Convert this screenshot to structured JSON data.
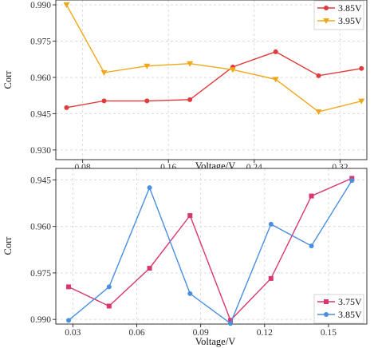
{
  "chart_data": [
    {
      "type": "line",
      "xlabel": "Voltage/V",
      "ylabel": "Corr",
      "xlim": [
        0.055,
        0.345
      ],
      "ylim": [
        0.926,
        0.992
      ],
      "y_inverted": false,
      "xticks": [
        "0.08",
        "0.16",
        "0.24",
        "0.32"
      ],
      "yticks": [
        "0.930",
        "0.945",
        "0.960",
        "0.975",
        "0.990"
      ],
      "grid": true,
      "legend": "top-right",
      "series": [
        {
          "name": "3.85V",
          "color": "#e03a3a",
          "marker": "circle",
          "x": [
            0.065,
            0.1,
            0.14,
            0.18,
            0.22,
            0.26,
            0.3,
            0.34
          ],
          "y": [
            0.9475,
            0.9503,
            0.9503,
            0.9508,
            0.9643,
            0.9706,
            0.9607,
            0.9637
          ]
        },
        {
          "name": "3.95V",
          "color": "#f0a81a",
          "marker": "triangle-down",
          "x": [
            0.065,
            0.1,
            0.14,
            0.18,
            0.22,
            0.26,
            0.3,
            0.34
          ],
          "y": [
            0.99,
            0.962,
            0.9647,
            0.9657,
            0.9632,
            0.9592,
            0.9458,
            0.9502
          ]
        }
      ]
    },
    {
      "type": "line",
      "xlabel": "Voltage/V",
      "ylabel": "Corr",
      "xlim": [
        0.022,
        0.168
      ],
      "ylim": [
        0.9915,
        0.9413
      ],
      "y_inverted": true,
      "xticks": [
        "0.03",
        "0.06",
        "0.09",
        "0.12",
        "0.15"
      ],
      "yticks": [
        "0.945",
        "0.960",
        "0.975",
        "0.990"
      ],
      "grid": true,
      "legend": "bottom-right",
      "series": [
        {
          "name": "3.75V",
          "color": "#d93670",
          "marker": "square",
          "x": [
            0.028,
            0.047,
            0.066,
            0.085,
            0.104,
            0.123,
            0.142,
            0.161
          ],
          "y": [
            0.9795,
            0.9857,
            0.9735,
            0.9565,
            0.9903,
            0.9768,
            0.9502,
            0.9445
          ]
        },
        {
          "name": "3.85V",
          "color": "#4a8ee0",
          "marker": "circle",
          "x": [
            0.028,
            0.047,
            0.066,
            0.085,
            0.104,
            0.123,
            0.142,
            0.161
          ],
          "y": [
            0.9903,
            0.9795,
            0.9475,
            0.9817,
            0.9913,
            0.9593,
            0.9663,
            0.9452
          ]
        }
      ]
    }
  ]
}
